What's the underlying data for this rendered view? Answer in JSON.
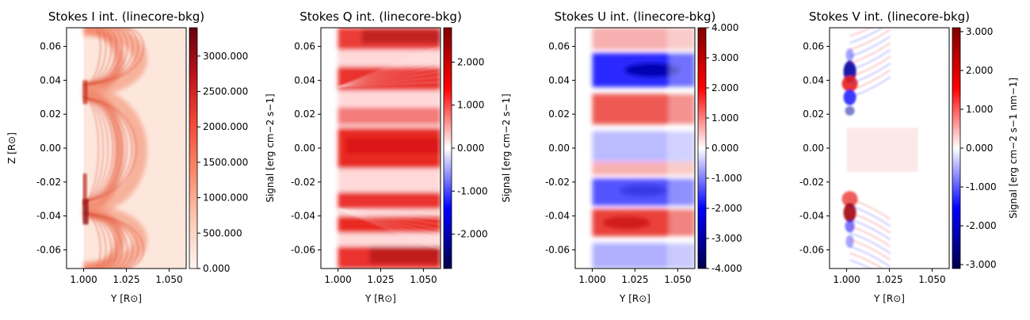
{
  "chart_data": [
    {
      "type": "heatmap",
      "title": "Stokes I int. (linecore-bkg)",
      "xlabel": "Y [R⊙]",
      "ylabel": "Z [R⊙]",
      "xlim": [
        0.99,
        1.06
      ],
      "ylim": [
        -0.071,
        0.071
      ],
      "xticks": [
        "1.000",
        "1.025",
        "1.050"
      ],
      "yticks": [
        "0.06",
        "0.04",
        "0.02",
        "0.00",
        "-0.02",
        "-0.04",
        "-0.06"
      ],
      "colormap": "Reds",
      "colorbar": {
        "label": "",
        "range": [
          0,
          3400
        ],
        "ticks": [
          "3000.000",
          "2500.000",
          "2000.000",
          "1500.000",
          "1000.000",
          "500.000",
          "0.000"
        ]
      }
    },
    {
      "type": "heatmap",
      "title": "Stokes Q int. (linecore-bkg)",
      "xlabel": "Y [R⊙]",
      "ylabel": "",
      "xlim": [
        0.99,
        1.06
      ],
      "ylim": [
        -0.071,
        0.071
      ],
      "xticks": [
        "1.000",
        "1.025",
        "1.050"
      ],
      "yticks": [
        "0.06",
        "0.04",
        "0.02",
        "0.00",
        "-0.02",
        "-0.04",
        "-0.06"
      ],
      "colormap": "seismic",
      "colorbar": {
        "label": "Signal [erg cm−2 s−1]",
        "range": [
          -2.8,
          2.8
        ],
        "ticks": [
          "2.000",
          "1.000",
          "0.000",
          "-1.000",
          "-2.000"
        ]
      }
    },
    {
      "type": "heatmap",
      "title": "Stokes U int. (linecore-bkg)",
      "xlabel": "Y [R⊙]",
      "ylabel": "",
      "xlim": [
        0.99,
        1.06
      ],
      "ylim": [
        -0.071,
        0.071
      ],
      "xticks": [
        "1.000",
        "1.025",
        "1.050"
      ],
      "yticks": [
        "0.06",
        "0.04",
        "0.02",
        "0.00",
        "-0.02",
        "-0.04",
        "-0.06"
      ],
      "colormap": "seismic",
      "colorbar": {
        "label": "Signal [erg cm−2 s−1]",
        "range": [
          -4,
          4
        ],
        "ticks": [
          "4.000",
          "3.000",
          "2.000",
          "1.000",
          "0.000",
          "-1.000",
          "-2.000",
          "-3.000",
          "-4.000"
        ]
      }
    },
    {
      "type": "heatmap",
      "title": "Stokes V int. (linecore-bkg)",
      "xlabel": "Y [R⊙]",
      "ylabel": "",
      "xlim": [
        0.99,
        1.06
      ],
      "ylim": [
        -0.071,
        0.071
      ],
      "xticks": [
        "1.000",
        "1.025",
        "1.050"
      ],
      "yticks": [
        "0.06",
        "0.04",
        "0.02",
        "0.00",
        "-0.02",
        "-0.04",
        "-0.06"
      ],
      "colormap": "seismic",
      "colorbar": {
        "label": "Signal [erg cm−2 s−1 nm−1]",
        "range": [
          -3.1,
          3.1
        ],
        "ticks": [
          "3.000",
          "2.000",
          "1.000",
          "0.000",
          "-1.000",
          "-2.000",
          "-3.000"
        ]
      }
    }
  ]
}
